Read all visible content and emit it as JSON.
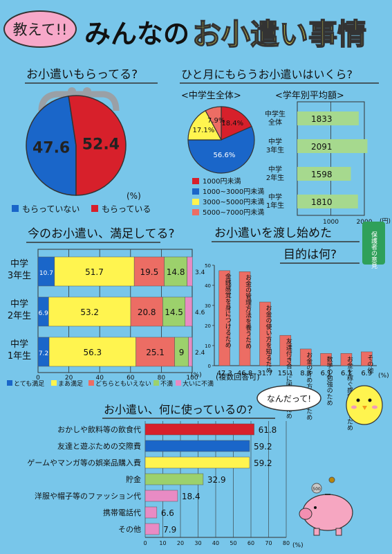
{
  "header": {
    "tag": "教えて!!",
    "title_part1": "みんなの",
    "title_part2": "お小遣い事情"
  },
  "sections": {
    "receive": {
      "title": "お小遣いもらってる?",
      "unit": "(%)",
      "legend": [
        "もらっていない",
        "もらっている"
      ]
    },
    "monthly": {
      "title": "ひと月にもらうお小遣いはいくら?",
      "pie_title": "<中学生全体>",
      "bar_title": "<学年別平均額>",
      "legend": [
        "1000円未満",
        "1000~3000円未満",
        "3000~5000円未満",
        "5000~7000円未満"
      ],
      "bar_unit": "(円)"
    },
    "satisfaction": {
      "title": "今のお小遣い、満足してる?",
      "unit": "(%)",
      "legend": [
        "とても満足",
        "まあ満足",
        "どちらともいえない",
        "不満",
        "大いに不満"
      ]
    },
    "purpose": {
      "title_line1": "お小遣いを渡し始めた",
      "title_line2": "目的は何?",
      "badge": "保護者の意見",
      "note": "(複数回答可)",
      "unit": "(%)"
    },
    "usage": {
      "title": "お小遣い、何に使っているの?",
      "unit": "(%)"
    }
  },
  "bubble": "なんだって!",
  "pig_coin": "500",
  "colors": {
    "background": "#78c6ea",
    "red": "#d7202b",
    "blue": "#1a66c9",
    "yellow": "#fff44f",
    "pink_coral": "#ec6d64",
    "green": "#9cd16c",
    "magenta": "#e88bc4",
    "title_pink": "#f7a8c9"
  },
  "chart_data": [
    {
      "type": "pie",
      "labels": [
        "もらっていない",
        "もらっている"
      ],
      "values": [
        47.6,
        52.4
      ],
      "colors": [
        "#1a66c9",
        "#d7202b"
      ]
    },
    {
      "type": "pie",
      "labels": [
        "1000円未満",
        "1000~3000円未満",
        "3000~5000円未満",
        "5000~7000円未満"
      ],
      "values": [
        18.4,
        56.6,
        17.1,
        7.9
      ],
      "colors": [
        "#d7202b",
        "#1a66c9",
        "#fff44f",
        "#ec6d64"
      ]
    },
    {
      "type": "bar",
      "categories": [
        "中学生全体",
        "中学3年生",
        "中学2年生",
        "中学1年生"
      ],
      "values": [
        1833,
        2091,
        1598,
        1810
      ],
      "xlim": [
        0,
        2000
      ],
      "ticks": [
        1000,
        2000
      ]
    },
    {
      "type": "bar",
      "stacked": true,
      "categories": [
        "中学3年生",
        "中学2年生",
        "中学1年生"
      ],
      "series": [
        {
          "name": "とても満足",
          "values": [
            10.7,
            6.9,
            7.2
          ]
        },
        {
          "name": "まあ満足",
          "values": [
            51.7,
            53.2,
            56.3
          ]
        },
        {
          "name": "どちらともいえない",
          "values": [
            19.5,
            20.8,
            25.1
          ]
        },
        {
          "name": "不満",
          "values": [
            14.8,
            14.5,
            9.0
          ]
        },
        {
          "name": "大いに不満",
          "values": [
            3.4,
            4.6,
            2.4
          ]
        }
      ],
      "xlim": [
        0,
        100
      ],
      "ticks": [
        0,
        20,
        40,
        60,
        80,
        100
      ]
    },
    {
      "type": "bar",
      "categories": [
        "金銭感覚を身につけるため",
        "お金の管理方法を養うため",
        "お金の使い方を知るため",
        "友達付き合いに困らないため",
        "お金の貯め方を知るため",
        "数学の勉強のため",
        "お金を稼ぐ感覚を養うため",
        "その他"
      ],
      "values": [
        47.3,
        46.8,
        31.7,
        15.1,
        8.3,
        6.1,
        6.1,
        6.9
      ],
      "value_labels": [
        "47.3",
        "46.8",
        "31.7",
        "15.1",
        "8.3",
        "6.1",
        "6.1",
        "6.9"
      ],
      "ylim": [
        0,
        50
      ],
      "ticks": [
        0,
        10,
        20,
        30,
        40,
        50
      ]
    },
    {
      "type": "bar",
      "categories": [
        "おかしや飲料等の飲食代",
        "友達と遊ぶための交際費",
        "ゲームやマンガ等の娯楽品購入費",
        "貯金",
        "洋服や帽子等のファッション代",
        "携帯電話代",
        "その他"
      ],
      "values": [
        61.8,
        59.2,
        59.2,
        32.9,
        18.4,
        6.6,
        7.9
      ],
      "xlim": [
        0,
        80
      ],
      "ticks": [
        0,
        10,
        20,
        30,
        40,
        50,
        60,
        70,
        80
      ]
    }
  ]
}
